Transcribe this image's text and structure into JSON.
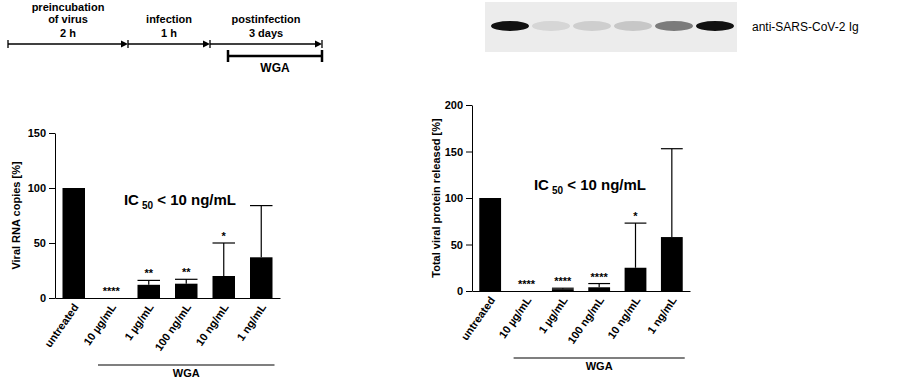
{
  "chart_data": [
    {
      "type": "bar",
      "y_label": "Viral RNA copies [%]",
      "categories": [
        "untreated",
        "10 µg/mL",
        "1 µg/mL",
        "100 ng/mL",
        "10 ng/mL",
        "1 ng/mL"
      ],
      "values": [
        100,
        0,
        12,
        13,
        20,
        37
      ],
      "errors": [
        0,
        0,
        4,
        4,
        30,
        47
      ],
      "significance": [
        null,
        "****",
        "**",
        "**",
        "*",
        null
      ],
      "annotation": [
        "IC",
        "50",
        " < 10 ng/mL"
      ],
      "group_label": "WGA",
      "color": "#000000",
      "ylim": [
        0,
        150
      ],
      "yticks": [
        0,
        50,
        100,
        150
      ]
    },
    {
      "type": "bar",
      "y_label": "Total viral protein released [%]",
      "categories": [
        "untreated",
        "10 µg/mL",
        "1 µg/mL",
        "100 ng/mL",
        "10 ng/mL",
        "1 ng/mL"
      ],
      "values": [
        100,
        0,
        2,
        4,
        25,
        58
      ],
      "errors": [
        0,
        0,
        1,
        4,
        48,
        95
      ],
      "significance": [
        null,
        "****",
        "****",
        "****",
        "*",
        null
      ],
      "annotation": [
        "IC",
        "50",
        " < 10 ng/mL"
      ],
      "group_label": "WGA",
      "color": "#000000",
      "ylim": [
        0,
        200
      ],
      "yticks": [
        0,
        50,
        100,
        150,
        200
      ]
    }
  ],
  "timeline": {
    "steps": [
      {
        "label": [
          "preincubation",
          "of virus"
        ],
        "duration": "2 h"
      },
      {
        "label": [
          "infection"
        ],
        "duration": "1 h"
      },
      {
        "label": [
          "postinfection"
        ],
        "duration": "3 days"
      }
    ],
    "treatment": "WGA"
  },
  "blot": {
    "label": "anti-SARS-CoV-2 Ig"
  }
}
